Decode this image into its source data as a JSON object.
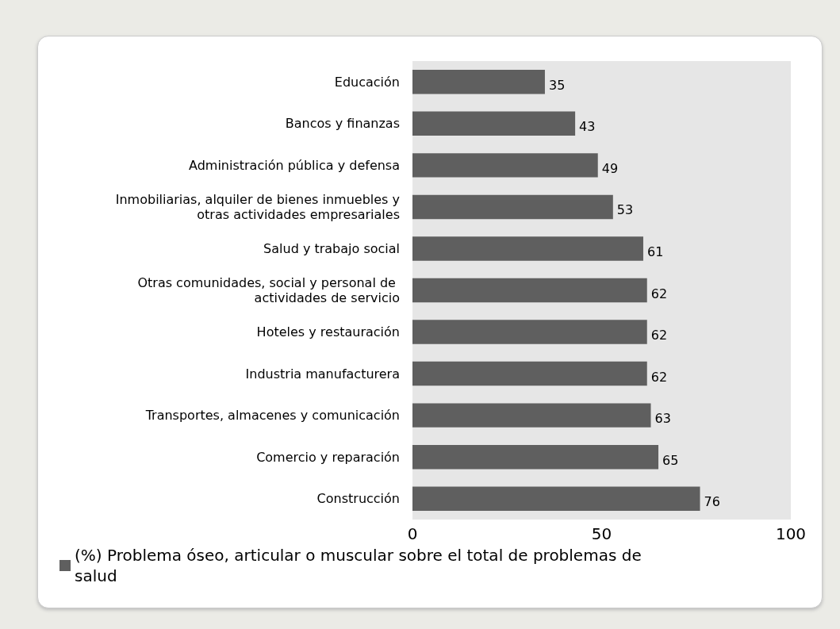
{
  "chart_data": {
    "type": "bar",
    "orientation": "horizontal",
    "categories": [
      "Educación",
      "Bancos y finanzas",
      "Administración pública y defensa",
      "Inmobiliarias, alquiler de bienes inmuebles y otras actividades empresariales",
      "Salud y trabajo social",
      "Otras comunidades, social y personal de actividades de servicio",
      "Hoteles y restauración",
      "Industria manufacturera",
      "Transportes, almacenes y comunicación",
      "Comercio y reparación",
      "Construcción"
    ],
    "series": [
      {
        "name": "(%) Problema óseo, articular o muscular sobre el total de problemas de salud",
        "color": "#5f5f5f",
        "values": [
          35,
          43,
          49,
          53,
          61,
          62,
          62,
          62,
          63,
          65,
          76
        ]
      }
    ],
    "xlim": [
      0,
      100
    ],
    "xticks": [
      0,
      50,
      100
    ],
    "data_labels": true,
    "grid": false,
    "legend": "bottom left"
  }
}
